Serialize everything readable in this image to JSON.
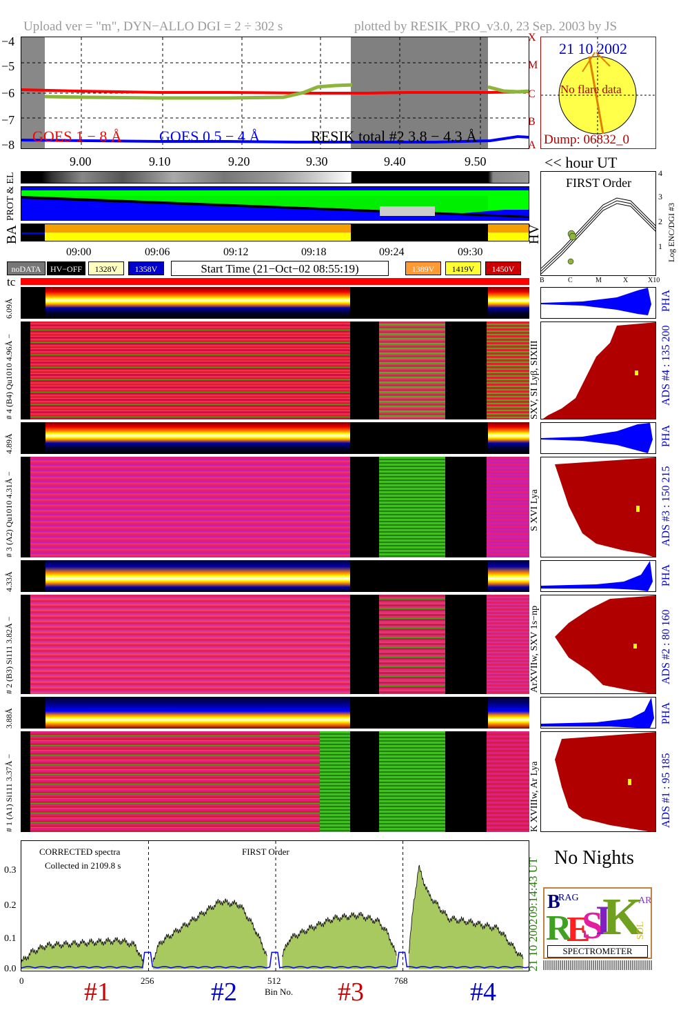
{
  "header": {
    "left": "Upload ver = \"m\", DYN−ALLO DGI =   2 ÷ 302 s",
    "right": "plotted by RESIK_PRO_v3.0, 23 Sep. 2003 by JS"
  },
  "goes": {
    "ylabels": [
      "−4",
      "−5",
      "−6",
      "−7",
      "−8"
    ],
    "classes": [
      "X",
      "M",
      "C",
      "B",
      "A"
    ],
    "legend_red": "GOES 1 − 8 Å",
    "legend_blue": "GOES 0.5 − 4 Å",
    "legend_black": "RESIK total #2  3.8 − 4.3 Å",
    "xlabels": [
      "9.00",
      "9.10",
      "9.20",
      "9.30",
      "9.40",
      "9.50"
    ],
    "hour_label": "<< hour UT",
    "colors": {
      "goes_long": "#ff0000",
      "goes_short": "#0000ff",
      "resik": "#8db53c"
    }
  },
  "sun": {
    "date": "21 10 2002",
    "no_flare": "No flare data",
    "dump": "Dump: 06832_0"
  },
  "status_rows": {
    "prot_label": "PROT & EL",
    "ba_label": "BA",
    "hv_label": "HV"
  },
  "first_order_plot": {
    "title": "FIRST Order",
    "ylabel": "Log ENC/DGI #3",
    "yticks": [
      "1",
      "2",
      "3",
      "4"
    ],
    "xticks": [
      "B",
      "C",
      "M",
      "X",
      "X10"
    ]
  },
  "time_axis": {
    "labels": [
      "09:00",
      "09:06",
      "09:12",
      "09:18",
      "09:24",
      "09:30"
    ]
  },
  "legend_chips": {
    "nodata": "noDATA",
    "hvoff": "HV−OFF",
    "v1328": "1328V",
    "v1358": "1358V",
    "start_time": "Start Time (21−Oct−02 08:55:19)",
    "v1389": "1389V",
    "v1419": "1419V",
    "v1450": "1450V"
  },
  "tc_label": "tc",
  "channels": [
    {
      "pha_label": "6.09Å",
      "spec_label": "# 4 (B4) Qu1010  4.96Å −",
      "line_label": "SXV, SI Lyβ, SIXIII",
      "ads_label": "ADS #4 :   135 200",
      "pha": "PHA"
    },
    {
      "pha_label": "4.89Å",
      "spec_label": "# 3 (A2) Qu1010  4.31Å −",
      "line_label": "S XVI Lya",
      "ads_label": "ADS #3 :   150 215",
      "pha": "PHA"
    },
    {
      "pha_label": "4.33Å",
      "spec_label": "# 2 (B3) Si111  3.82Å −",
      "line_label": "ArXVIIw, SXV 1s−np",
      "ads_label": "ADS #2 :    80 160",
      "pha": "PHA"
    },
    {
      "pha_label": "3.88Å",
      "spec_label": "# 1 (A1) Si111  3.37Å −",
      "line_label": "K XVIIIw, Ar Lya",
      "ads_label": "ADS #1 :    95 185",
      "pha": "PHA"
    }
  ],
  "chart_data": {
    "type": "area",
    "title": "FIRST Order",
    "note_line1": "CORRECTED spectra",
    "note_line2": "Collected in  2109.8 s",
    "xlabel": "Bin No.",
    "ylabel": "",
    "xlim": [
      0,
      1024
    ],
    "ylim": [
      0,
      0.37
    ],
    "xticks": [
      "0",
      "256",
      "512",
      "768"
    ],
    "yticks": [
      "0.0",
      "0.1",
      "0.2",
      "0.3"
    ],
    "channel_labels": [
      "#1",
      "#2",
      "#3",
      "#4"
    ],
    "series": [
      {
        "name": "channel #1",
        "x": [
          0,
          20,
          50,
          100,
          150,
          200,
          230,
          245
        ],
        "values": [
          0.02,
          0.05,
          0.07,
          0.075,
          0.08,
          0.085,
          0.07,
          0.02
        ]
      },
      {
        "name": "channel #2",
        "x": [
          265,
          280,
          320,
          360,
          400,
          440,
          470,
          495
        ],
        "values": [
          0.03,
          0.08,
          0.12,
          0.16,
          0.2,
          0.19,
          0.12,
          0.04
        ]
      },
      {
        "name": "channel #3",
        "x": [
          525,
          540,
          580,
          630,
          680,
          720,
          740,
          755
        ],
        "values": [
          0.04,
          0.09,
          0.12,
          0.15,
          0.16,
          0.14,
          0.1,
          0.04
        ]
      },
      {
        "name": "channel #4",
        "x": [
          780,
          790,
          800,
          820,
          860,
          900,
          960,
          1010
        ],
        "values": [
          0.05,
          0.2,
          0.3,
          0.22,
          0.15,
          0.14,
          0.12,
          0.03
        ]
      }
    ],
    "side_time": "09:14:43 UT",
    "side_date": "21 10 2002"
  },
  "bottom_right": {
    "no_nights": "No Nights",
    "logo_sub": "SPECTROMETER",
    "logo_b": "B",
    "logo_rag": "RAG",
    "logo_r": "R",
    "logo_e": "E",
    "logo_s": "S",
    "logo_i": "I",
    "logo_k": "K",
    "logo_sol": "SOL",
    "logo_ar": "AR"
  }
}
